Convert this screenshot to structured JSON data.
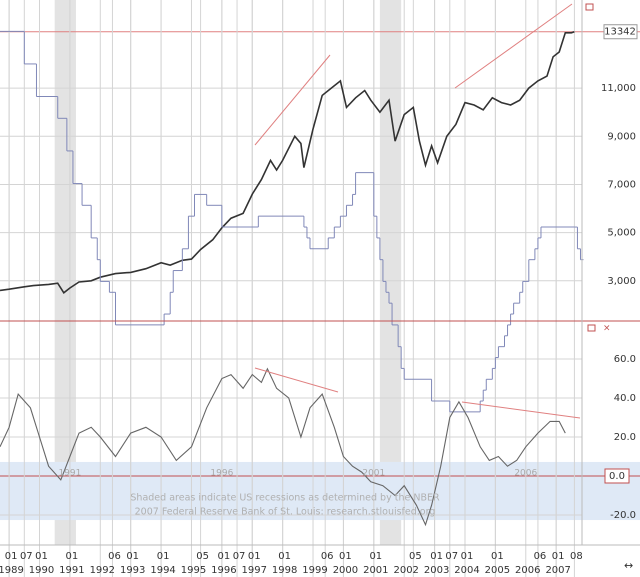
{
  "chart_data": [
    {
      "type": "line",
      "xlim": [
        1988.7,
        2007.85
      ],
      "ylim": [
        1330,
        14660
      ],
      "yticks": [
        {
          "value": 3000,
          "label": "3,000"
        },
        {
          "value": 5000,
          "label": "5,000"
        },
        {
          "value": 7000,
          "label": "7,000"
        },
        {
          "value": 9000,
          "label": "9,000"
        },
        {
          "value": 11000,
          "label": "11,000"
        }
      ],
      "y2lim": [
        -2.06,
        10.47
      ],
      "grid": true,
      "reference_line": 13342,
      "recessions": [
        [
          1990.5,
          1991.2
        ],
        [
          2001.2,
          2001.9
        ]
      ],
      "series": [
        {
          "color": "#333333",
          "x": [
            1988.7,
            1989.0,
            1989.5,
            1989.8,
            1990.3,
            1990.6,
            1990.8,
            1991.0,
            1991.3,
            1991.7,
            1992.0,
            1992.5,
            1993.0,
            1993.5,
            1994.0,
            1994.3,
            1994.7,
            1995.0,
            1995.3,
            1995.7,
            1996.0,
            1996.3,
            1996.7,
            1997.0,
            1997.3,
            1997.6,
            1997.8,
            1998.0,
            1998.4,
            1998.6,
            1998.7,
            1999.0,
            1999.3,
            1999.6,
            1999.9,
            2000.1,
            2000.4,
            2000.7,
            2000.9,
            2001.2,
            2001.5,
            2001.7,
            2002.0,
            2002.3,
            2002.5,
            2002.7,
            2002.9,
            2003.1,
            2003.4,
            2003.7,
            2004.0,
            2004.3,
            2004.6,
            2004.9,
            2005.2,
            2005.5,
            2005.8,
            2006.1,
            2006.4,
            2006.7,
            2006.9,
            2007.1,
            2007.3,
            2007.5,
            2007.6
          ],
          "values": [
            2600,
            2650,
            2750,
            2800,
            2850,
            2900,
            2500,
            2700,
            2950,
            3000,
            3150,
            3300,
            3350,
            3500,
            3750,
            3650,
            3850,
            3900,
            4300,
            4700,
            5200,
            5600,
            5800,
            6600,
            7200,
            8000,
            7600,
            8000,
            9000,
            8700,
            7700,
            9300,
            10700,
            11000,
            11300,
            10200,
            10600,
            10900,
            10500,
            10000,
            10500,
            8800,
            9900,
            10200,
            8800,
            7800,
            8600,
            7900,
            9000,
            9500,
            10400,
            10300,
            10100,
            10600,
            10400,
            10300,
            10500,
            11000,
            11300,
            11500,
            12300,
            12500,
            13300,
            13300,
            13342
          ]
        },
        {
          "color": "#8088b8",
          "axis": "y2",
          "step": true,
          "x": [
            1988.7,
            1989.5,
            1989.9,
            1990.6,
            1990.9,
            1991.1,
            1991.4,
            1991.7,
            1991.9,
            1992.0,
            1992.3,
            1992.5,
            1994.1,
            1994.3,
            1994.4,
            1994.7,
            1994.9,
            1995.1,
            1995.5,
            1996.0,
            1997.2,
            1998.7,
            1998.8,
            1998.9,
            1999.5,
            1999.7,
            1999.9,
            2000.1,
            2000.3,
            2000.4,
            2001.0,
            2001.1,
            2001.2,
            2001.3,
            2001.4,
            2001.5,
            2001.6,
            2001.8,
            2001.9,
            2002.0,
            2002.9,
            2003.5,
            2004.5,
            2004.6,
            2004.7,
            2004.9,
            2005.0,
            2005.1,
            2005.3,
            2005.4,
            2005.5,
            2005.6,
            2005.8,
            2005.9,
            2006.1,
            2006.3,
            2006.4,
            2006.5,
            2007.6,
            2007.7,
            2007.8
          ],
          "values": [
            9.75,
            9.0,
            8.25,
            7.75,
            7.0,
            6.25,
            5.75,
            5.0,
            4.5,
            4.0,
            3.75,
            3.0,
            3.25,
            3.75,
            4.25,
            4.75,
            5.5,
            6.0,
            5.75,
            5.25,
            5.5,
            5.25,
            5.0,
            4.75,
            5.0,
            5.25,
            5.5,
            5.75,
            6.0,
            6.5,
            5.5,
            5.0,
            4.5,
            4.0,
            3.75,
            3.5,
            3.0,
            2.5,
            2.0,
            1.75,
            1.25,
            1.0,
            1.25,
            1.5,
            1.75,
            2.0,
            2.25,
            2.5,
            2.75,
            3.0,
            3.25,
            3.5,
            3.75,
            4.0,
            4.5,
            4.75,
            5.0,
            5.25,
            5.25,
            4.75,
            4.5
          ]
        }
      ]
    },
    {
      "type": "line",
      "xlim": [
        1988.7,
        2007.85
      ],
      "ylim": [
        -35.4,
        79
      ],
      "yticks": [
        {
          "value": -20,
          "label": "-20.0"
        },
        {
          "value": 0,
          "label": "0.0"
        },
        {
          "value": 20,
          "label": "20.0"
        },
        {
          "value": 40,
          "label": "40.0"
        },
        {
          "value": 60,
          "label": "60.0"
        }
      ],
      "grid": true,
      "shaded_band": [
        -22.6,
        7.2
      ],
      "xticks": [
        {
          "value": 1989,
          "label": "1989"
        },
        {
          "value": 1990,
          "label": "1990"
        },
        {
          "value": 1991,
          "label": "1991"
        },
        {
          "value": 1992,
          "label": "1992"
        },
        {
          "value": 1993,
          "label": "1993"
        },
        {
          "value": 1994,
          "label": "1994"
        },
        {
          "value": 1995,
          "label": "1995"
        },
        {
          "value": 1996,
          "label": "1996"
        },
        {
          "value": 1997,
          "label": "1997"
        },
        {
          "value": 1998,
          "label": "1998"
        },
        {
          "value": 1999,
          "label": "1999"
        },
        {
          "value": 2000,
          "label": "2000"
        },
        {
          "value": 2001,
          "label": "2001"
        },
        {
          "value": 2002,
          "label": "2002"
        },
        {
          "value": 2003,
          "label": "2003"
        },
        {
          "value": 2004,
          "label": "2004"
        },
        {
          "value": 2005,
          "label": "2005"
        },
        {
          "value": 2006,
          "label": "2006"
        },
        {
          "value": 2007,
          "label": "2007"
        }
      ],
      "xticks_minor": [
        {
          "value": 1989.0,
          "label": "01"
        },
        {
          "value": 1989.5,
          "label": "07"
        },
        {
          "value": 1990.0,
          "label": "01"
        },
        {
          "value": 1991.0,
          "label": "01"
        },
        {
          "value": 1992.4,
          "label": "06"
        },
        {
          "value": 1993.0,
          "label": "01"
        },
        {
          "value": 1994.0,
          "label": "01"
        },
        {
          "value": 1995.3,
          "label": "05"
        },
        {
          "value": 1996.0,
          "label": "01"
        },
        {
          "value": 1996.5,
          "label": "07"
        },
        {
          "value": 1997.0,
          "label": "01"
        },
        {
          "value": 1998.0,
          "label": "01"
        },
        {
          "value": 1999.4,
          "label": "06"
        },
        {
          "value": 2000.0,
          "label": "01"
        },
        {
          "value": 2001.0,
          "label": "01"
        },
        {
          "value": 2002.3,
          "label": "05"
        },
        {
          "value": 2003.0,
          "label": "01"
        },
        {
          "value": 2003.5,
          "label": "07"
        },
        {
          "value": 2004.0,
          "label": "01"
        },
        {
          "value": 2005.0,
          "label": "01"
        },
        {
          "value": 2006.4,
          "label": "06"
        },
        {
          "value": 2007.0,
          "label": "01"
        },
        {
          "value": 2007.6,
          "label": "08"
        }
      ],
      "panel_year_labels": [
        {
          "value": 1991,
          "label": "1991"
        },
        {
          "value": 1996,
          "label": "1996"
        },
        {
          "value": 2001,
          "label": "2001"
        },
        {
          "value": 2006,
          "label": "2006"
        }
      ],
      "annotations": [
        "Shaded areas indicate US recessions as determined by the NBER",
        "2007 Federal Reserve Bank of St. Louis: research.stlouisfed.org"
      ],
      "series": [
        {
          "color": "#666666",
          "x": [
            1988.7,
            1989.0,
            1989.3,
            1989.7,
            1990.0,
            1990.3,
            1990.7,
            1991.0,
            1991.3,
            1991.7,
            1992.0,
            1992.5,
            1993.0,
            1993.5,
            1994.0,
            1994.5,
            1995.0,
            1995.5,
            1996.0,
            1996.3,
            1996.7,
            1997.0,
            1997.3,
            1997.5,
            1997.8,
            1998.2,
            1998.6,
            1998.9,
            1999.3,
            1999.7,
            2000.0,
            2000.3,
            2000.6,
            2000.9,
            2001.3,
            2001.7,
            2002.0,
            2002.4,
            2002.7,
            2002.9,
            2003.2,
            2003.5,
            2003.8,
            2004.1,
            2004.5,
            2004.8,
            2005.1,
            2005.4,
            2005.7,
            2006.0,
            2006.4,
            2006.8,
            2007.1,
            2007.3
          ],
          "values": [
            15,
            25,
            42,
            35,
            20,
            5,
            -2,
            10,
            22,
            25,
            20,
            10,
            22,
            25,
            20,
            8,
            15,
            35,
            50,
            52,
            45,
            52,
            48,
            55,
            45,
            40,
            20,
            35,
            42,
            25,
            10,
            5,
            2,
            -3,
            -5,
            -10,
            -5,
            -15,
            -25,
            -15,
            5,
            30,
            38,
            30,
            15,
            8,
            10,
            5,
            8,
            15,
            22,
            28,
            28,
            22
          ]
        }
      ]
    }
  ]
}
